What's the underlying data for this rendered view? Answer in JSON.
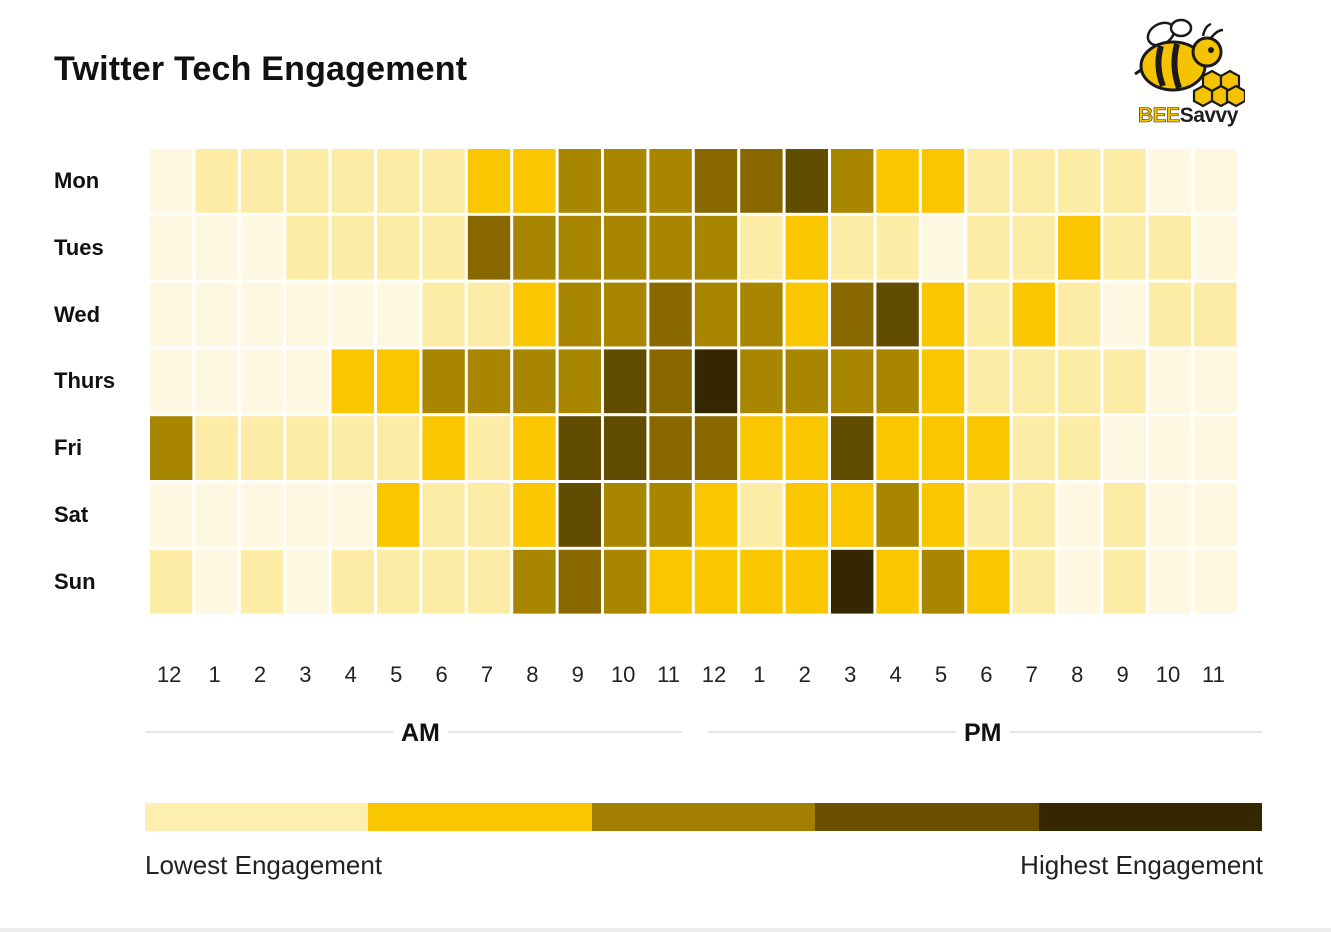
{
  "title": "Twitter Tech Engagement",
  "logo": {
    "text_part1": "BEE",
    "text_part2": "Savvy"
  },
  "periods": {
    "am": "AM",
    "pm": "PM"
  },
  "legend": {
    "low_label": "Lowest Engagement",
    "high_label": "Highest Engagement",
    "colors": [
      "#fdefb0",
      "#f9c600",
      "#a37f00",
      "#6b4e00",
      "#352700"
    ]
  },
  "level_colors": [
    "#fef8e2",
    "#fdeca6",
    "#f9c600",
    "#a88600",
    "#8a6800",
    "#614c00",
    "#352700"
  ],
  "chart_data": {
    "type": "heatmap",
    "title": "Twitter Tech Engagement",
    "y_categories": [
      "Mon",
      "Tues",
      "Wed",
      "Thurs",
      "Fri",
      "Sat",
      "Sun"
    ],
    "x_categories": [
      "12",
      "1",
      "2",
      "3",
      "4",
      "5",
      "6",
      "7",
      "8",
      "9",
      "10",
      "11",
      "12",
      "1",
      "2",
      "3",
      "4",
      "5",
      "6",
      "7",
      "8",
      "9",
      "10",
      "11"
    ],
    "x_groups": [
      {
        "label": "AM",
        "from": 0,
        "to": 11
      },
      {
        "label": "PM",
        "from": 12,
        "to": 23
      }
    ],
    "scale": {
      "min_label": "Lowest Engagement",
      "max_label": "Highest Engagement",
      "levels": 7
    },
    "values": [
      [
        0,
        1,
        1,
        1,
        1,
        1,
        1,
        2,
        2,
        3,
        3,
        3,
        4,
        4,
        5,
        3,
        2,
        2,
        1,
        1,
        1,
        1,
        0,
        0
      ],
      [
        0,
        0,
        0,
        1,
        1,
        1,
        1,
        4,
        3,
        3,
        3,
        3,
        3,
        1,
        2,
        1,
        1,
        0,
        1,
        1,
        2,
        1,
        1,
        0
      ],
      [
        0,
        0,
        0,
        0,
        0,
        0,
        1,
        1,
        2,
        3,
        3,
        4,
        3,
        3,
        2,
        4,
        5,
        2,
        1,
        2,
        1,
        0,
        1,
        1
      ],
      [
        0,
        0,
        0,
        0,
        2,
        2,
        3,
        3,
        3,
        3,
        5,
        4,
        6,
        3,
        3,
        3,
        3,
        2,
        1,
        1,
        1,
        1,
        0,
        0
      ],
      [
        3,
        1,
        1,
        1,
        1,
        1,
        2,
        1,
        2,
        5,
        5,
        4,
        4,
        2,
        2,
        5,
        2,
        2,
        2,
        1,
        1,
        0,
        0,
        0
      ],
      [
        0,
        0,
        0,
        0,
        0,
        2,
        1,
        1,
        2,
        5,
        3,
        3,
        2,
        1,
        2,
        2,
        3,
        2,
        1,
        1,
        0,
        1,
        0,
        0
      ],
      [
        1,
        0,
        1,
        0,
        1,
        1,
        1,
        1,
        3,
        4,
        3,
        2,
        2,
        2,
        2,
        6,
        2,
        3,
        2,
        1,
        0,
        1,
        0,
        0
      ]
    ]
  }
}
